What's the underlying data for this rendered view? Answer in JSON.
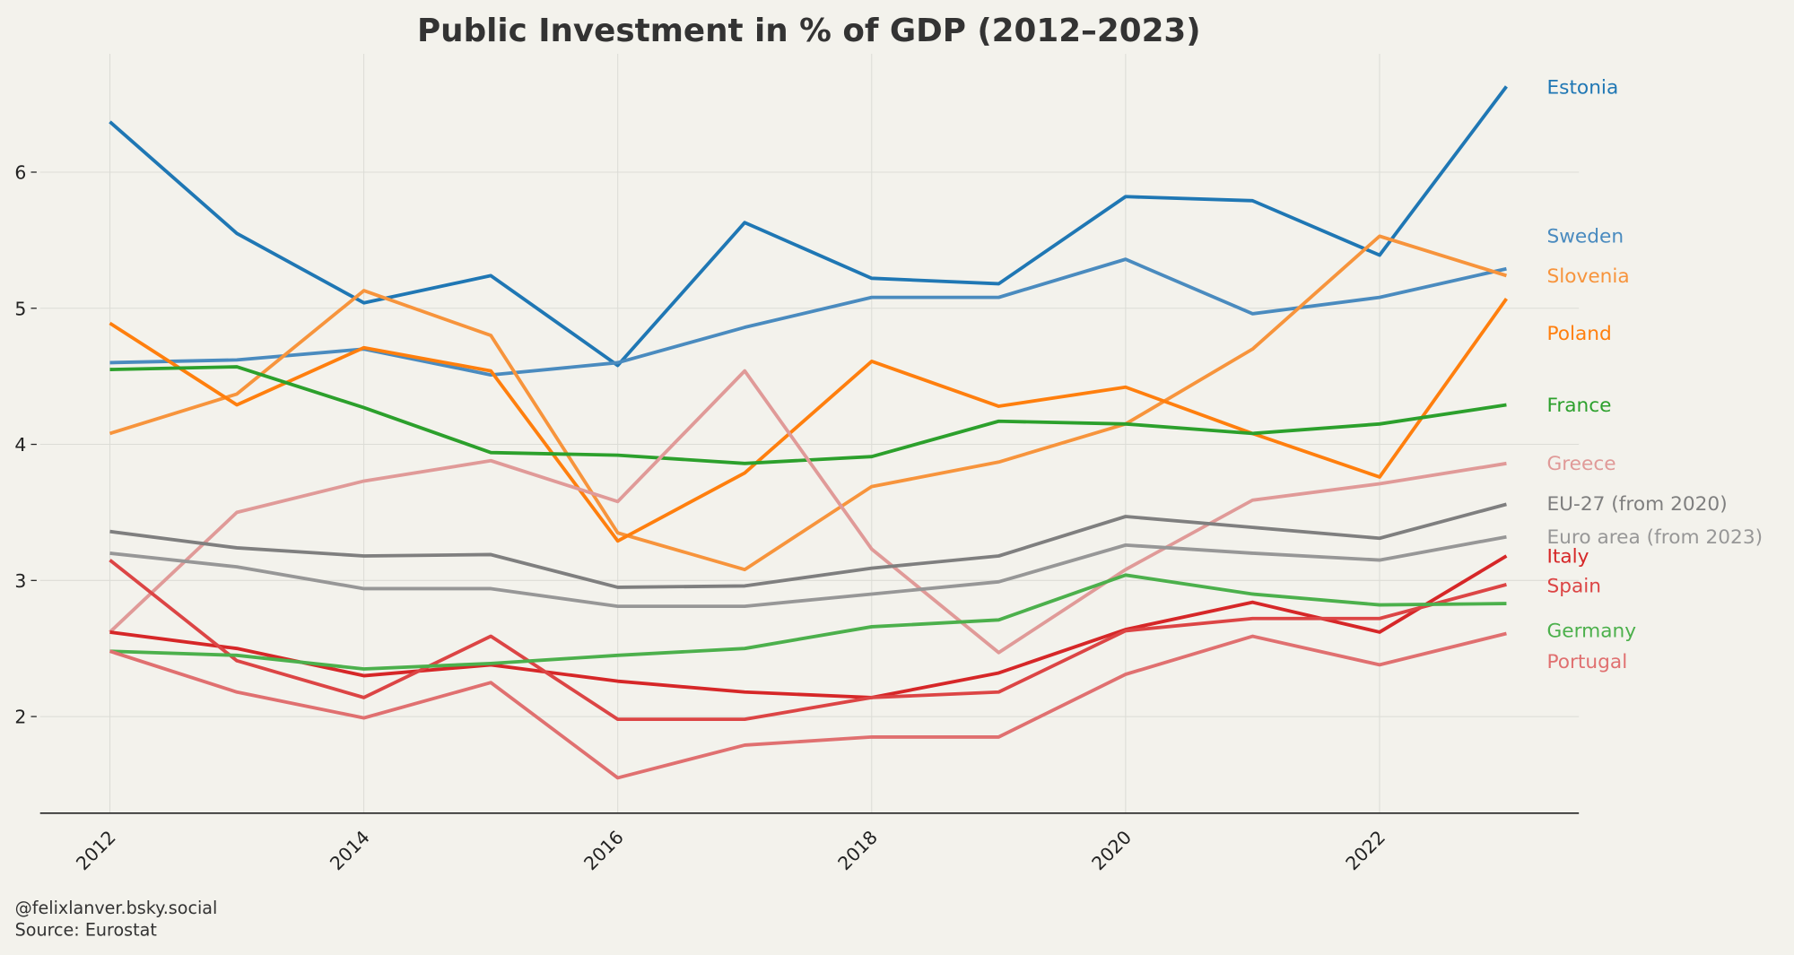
{
  "chart_data": {
    "type": "line",
    "title": "Public Investment in % of GDP (2012–2023)",
    "xlabel": "",
    "ylabel": "",
    "x": [
      2012,
      2013,
      2014,
      2015,
      2016,
      2017,
      2018,
      2019,
      2020,
      2021,
      2022,
      2023
    ],
    "xlim": [
      2011.45,
      2023.57
    ],
    "ylim": [
      1.29,
      6.87
    ],
    "xticks": [
      2012,
      2014,
      2016,
      2018,
      2020,
      2022
    ],
    "yticks": [
      2,
      3,
      4,
      5,
      6
    ],
    "grid": true,
    "legend": "direct labels at right",
    "series": [
      {
        "name": "Estonia",
        "color": "#1f77b4",
        "values": [
          6.37,
          5.55,
          5.04,
          5.24,
          4.58,
          5.63,
          5.22,
          5.18,
          5.82,
          5.79,
          5.39,
          6.63
        ]
      },
      {
        "name": "Sweden",
        "color": "#4a8bbf",
        "values": [
          4.6,
          4.62,
          4.7,
          4.51,
          4.6,
          4.86,
          5.08,
          5.08,
          5.36,
          4.96,
          5.08,
          5.29
        ]
      },
      {
        "name": "Slovenia",
        "color": "#f7943c",
        "values": [
          4.08,
          4.37,
          5.13,
          4.8,
          3.35,
          3.08,
          3.69,
          3.87,
          4.15,
          4.7,
          5.53,
          5.24
        ]
      },
      {
        "name": "Poland",
        "color": "#ff7f0e",
        "values": [
          4.89,
          4.29,
          4.71,
          4.54,
          3.29,
          3.79,
          4.61,
          4.28,
          4.42,
          4.08,
          3.76,
          5.07
        ]
      },
      {
        "name": "France",
        "color": "#2ca02c",
        "values": [
          4.55,
          4.57,
          4.27,
          3.94,
          3.92,
          3.86,
          3.91,
          4.17,
          4.15,
          4.08,
          4.15,
          4.29
        ]
      },
      {
        "name": "Greece",
        "color": "#e09a98",
        "values": [
          2.62,
          3.5,
          3.73,
          3.88,
          3.58,
          4.54,
          3.23,
          2.47,
          3.08,
          3.59,
          3.71,
          3.86
        ]
      },
      {
        "name": "EU-27 (from 2020)",
        "color": "#7f7f7f",
        "values": [
          3.36,
          3.24,
          3.18,
          3.19,
          2.95,
          2.96,
          3.09,
          3.18,
          3.47,
          3.39,
          3.31,
          3.56
        ]
      },
      {
        "name": "Euro area (from 2023)",
        "color": "#979797",
        "values": [
          3.2,
          3.1,
          2.94,
          2.94,
          2.81,
          2.81,
          2.9,
          2.99,
          3.26,
          3.2,
          3.15,
          3.32
        ]
      },
      {
        "name": "Italy",
        "color": "#d62728",
        "values": [
          2.62,
          2.5,
          2.3,
          2.38,
          2.26,
          2.18,
          2.14,
          2.32,
          2.64,
          2.84,
          2.62,
          3.18
        ]
      },
      {
        "name": "Spain",
        "color": "#dc4545",
        "values": [
          3.15,
          2.41,
          2.14,
          2.59,
          1.98,
          1.98,
          2.14,
          2.18,
          2.63,
          2.72,
          2.72,
          2.97
        ]
      },
      {
        "name": "Germany",
        "color": "#4cb04c",
        "values": [
          2.48,
          2.45,
          2.35,
          2.39,
          2.45,
          2.5,
          2.66,
          2.71,
          3.04,
          2.9,
          2.82,
          2.83
        ]
      },
      {
        "name": "Portugal",
        "color": "#e07070",
        "values": [
          2.48,
          2.18,
          1.99,
          2.25,
          1.55,
          1.79,
          1.85,
          1.85,
          2.31,
          2.59,
          2.38,
          2.61
        ]
      }
    ]
  },
  "footer": {
    "credit": "@felixlanver.bsky.social",
    "source": "Source: Eurostat"
  },
  "colors": {
    "background": "#f3f2ec",
    "axis": "#222222",
    "grid": "#dcdcd6"
  }
}
